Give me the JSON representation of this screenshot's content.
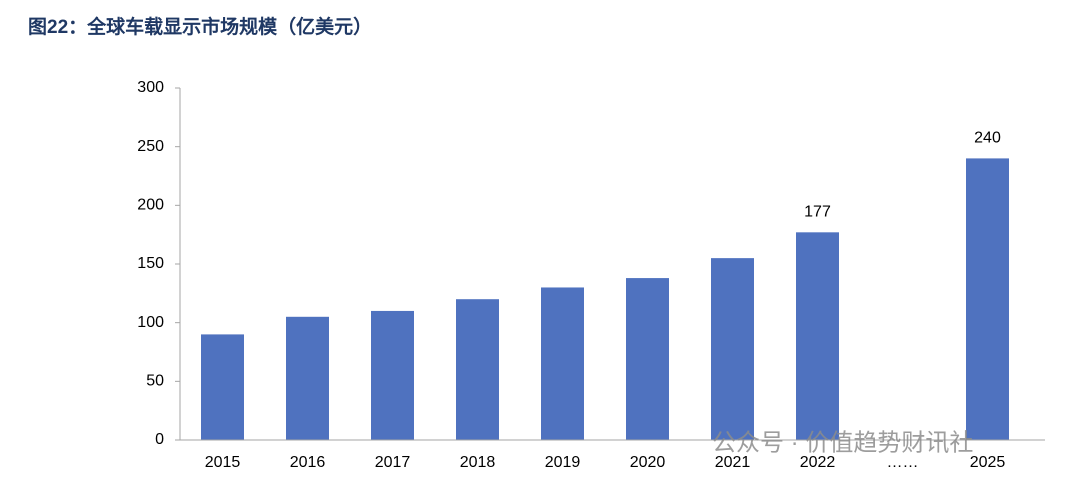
{
  "chart_data": {
    "type": "bar",
    "title": "图22：全球车载显示市场规模（亿美元）",
    "categories": [
      "2015",
      "2016",
      "2017",
      "2018",
      "2019",
      "2020",
      "2021",
      "2022",
      "……",
      "2025"
    ],
    "values": [
      90,
      105,
      110,
      120,
      130,
      138,
      155,
      177,
      null,
      240
    ],
    "show_labels": [
      false,
      false,
      false,
      false,
      false,
      false,
      false,
      true,
      false,
      true
    ],
    "color": "#4f72bf",
    "ylim": [
      0,
      300
    ],
    "yticks": [
      0,
      50,
      100,
      150,
      200,
      250,
      300
    ],
    "grid": false,
    "watermark": "公众号 · 价值趋势财讯社"
  }
}
